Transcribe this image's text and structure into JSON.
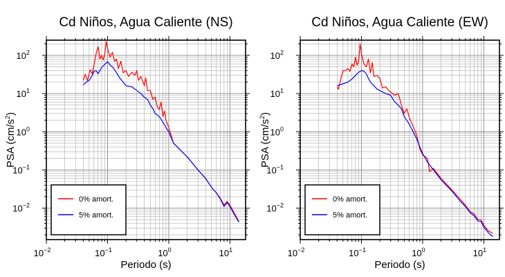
{
  "chart_data": [
    {
      "type": "line",
      "title": "Cd Niños, Agua Caliente (NS)",
      "xlabel": "Periodo (s)",
      "ylabel_main": "PSA (cm/s",
      "ylabel_sup": "2",
      "ylabel_close": ")",
      "x_scale": "log",
      "y_scale": "log",
      "xlim": [
        0.01,
        18
      ],
      "ylim": [
        0.0015,
        250
      ],
      "grid": true,
      "legend_position": "bottom-left",
      "x_ticks": [
        {
          "base": "10",
          "exp": "−2",
          "value": 0.01
        },
        {
          "base": "10",
          "exp": "−1",
          "value": 0.1
        },
        {
          "base": "10",
          "exp": "0",
          "value": 1
        },
        {
          "base": "10",
          "exp": "1",
          "value": 10
        }
      ],
      "y_ticks": [
        {
          "base": "10",
          "exp": "−2",
          "value": 0.01
        },
        {
          "base": "10",
          "exp": "−1",
          "value": 0.1
        },
        {
          "base": "10",
          "exp": "0",
          "value": 1
        },
        {
          "base": "10",
          "exp": "1",
          "value": 10
        },
        {
          "base": "10",
          "exp": "2",
          "value": 100
        }
      ],
      "series": [
        {
          "name": "0% amort.",
          "color": "#ff0000",
          "points": [
            [
              0.04,
              22
            ],
            [
              0.043,
              32
            ],
            [
              0.047,
              22
            ],
            [
              0.052,
              42
            ],
            [
              0.056,
              33
            ],
            [
              0.06,
              55
            ],
            [
              0.065,
              110
            ],
            [
              0.07,
              170
            ],
            [
              0.075,
              80
            ],
            [
              0.08,
              100
            ],
            [
              0.085,
              75
            ],
            [
              0.09,
              110
            ],
            [
              0.095,
              230
            ],
            [
              0.1,
              150
            ],
            [
              0.11,
              90
            ],
            [
              0.12,
              120
            ],
            [
              0.13,
              70
            ],
            [
              0.14,
              80
            ],
            [
              0.15,
              45
            ],
            [
              0.165,
              70
            ],
            [
              0.18,
              35
            ],
            [
              0.2,
              40
            ],
            [
              0.22,
              28
            ],
            [
              0.25,
              36
            ],
            [
              0.28,
              30
            ],
            [
              0.3,
              40
            ],
            [
              0.32,
              22
            ],
            [
              0.35,
              28
            ],
            [
              0.4,
              16
            ],
            [
              0.42,
              26
            ],
            [
              0.45,
              12
            ],
            [
              0.5,
              12
            ],
            [
              0.55,
              7
            ],
            [
              0.6,
              8
            ],
            [
              0.65,
              4.5
            ],
            [
              0.7,
              3.8
            ],
            [
              0.75,
              6
            ],
            [
              0.8,
              2.5
            ],
            [
              0.85,
              3.5
            ],
            [
              0.9,
              2
            ],
            [
              1.0,
              1.3
            ],
            [
              1.2,
              0.5
            ],
            [
              1.5,
              0.35
            ],
            [
              2.0,
              0.22
            ],
            [
              3.0,
              0.1
            ],
            [
              4.0,
              0.06
            ],
            [
              5.0,
              0.035
            ],
            [
              6.0,
              0.025
            ],
            [
              7.0,
              0.018
            ],
            [
              8.0,
              0.012
            ],
            [
              9.0,
              0.015
            ],
            [
              10.0,
              0.012
            ],
            [
              12.0,
              0.007
            ],
            [
              14.0,
              0.0045
            ]
          ]
        },
        {
          "name": "5% amort.",
          "color": "#0000ff",
          "points": [
            [
              0.04,
              17
            ],
            [
              0.045,
              20
            ],
            [
              0.05,
              22
            ],
            [
              0.055,
              28
            ],
            [
              0.06,
              38
            ],
            [
              0.065,
              40
            ],
            [
              0.07,
              33
            ],
            [
              0.075,
              40
            ],
            [
              0.08,
              48
            ],
            [
              0.09,
              58
            ],
            [
              0.1,
              68
            ],
            [
              0.11,
              56
            ],
            [
              0.12,
              50
            ],
            [
              0.13,
              42
            ],
            [
              0.14,
              35
            ],
            [
              0.16,
              25
            ],
            [
              0.18,
              20
            ],
            [
              0.2,
              16
            ],
            [
              0.25,
              15
            ],
            [
              0.3,
              12
            ],
            [
              0.35,
              10
            ],
            [
              0.4,
              8
            ],
            [
              0.45,
              7
            ],
            [
              0.5,
              5
            ],
            [
              0.55,
              4
            ],
            [
              0.6,
              3
            ],
            [
              0.7,
              2.5
            ],
            [
              0.8,
              1.8
            ],
            [
              0.9,
              1.3
            ],
            [
              1.0,
              1.0
            ],
            [
              1.2,
              0.5
            ],
            [
              1.5,
              0.35
            ],
            [
              2.0,
              0.22
            ],
            [
              3.0,
              0.1
            ],
            [
              4.0,
              0.06
            ],
            [
              5.0,
              0.035
            ],
            [
              6.0,
              0.025
            ],
            [
              7.0,
              0.017
            ],
            [
              8.0,
              0.011
            ],
            [
              9.0,
              0.014
            ],
            [
              10.0,
              0.011
            ],
            [
              12.0,
              0.0065
            ],
            [
              14.0,
              0.0043
            ]
          ]
        }
      ]
    },
    {
      "type": "line",
      "title": "Cd Niños, Agua Caliente (EW)",
      "xlabel": "Periodo (s)",
      "ylabel_main": "PSA (cm/s",
      "ylabel_sup": "2",
      "ylabel_close": ")",
      "x_scale": "log",
      "y_scale": "log",
      "xlim": [
        0.01,
        18
      ],
      "ylim": [
        0.0015,
        250
      ],
      "grid": true,
      "legend_position": "bottom-left",
      "x_ticks": [
        {
          "base": "10",
          "exp": "−2",
          "value": 0.01
        },
        {
          "base": "10",
          "exp": "−1",
          "value": 0.1
        },
        {
          "base": "10",
          "exp": "0",
          "value": 1
        },
        {
          "base": "10",
          "exp": "1",
          "value": 10
        }
      ],
      "y_ticks": [
        {
          "base": "10",
          "exp": "−2",
          "value": 0.01
        },
        {
          "base": "10",
          "exp": "−1",
          "value": 0.1
        },
        {
          "base": "10",
          "exp": "0",
          "value": 1
        },
        {
          "base": "10",
          "exp": "1",
          "value": 10
        },
        {
          "base": "10",
          "exp": "2",
          "value": 100
        }
      ],
      "series": [
        {
          "name": "0% amort.",
          "color": "#ff0000",
          "points": [
            [
              0.04,
              15
            ],
            [
              0.042,
              13
            ],
            [
              0.05,
              40
            ],
            [
              0.055,
              40
            ],
            [
              0.06,
              45
            ],
            [
              0.065,
              38
            ],
            [
              0.07,
              60
            ],
            [
              0.075,
              50
            ],
            [
              0.08,
              90
            ],
            [
              0.085,
              55
            ],
            [
              0.09,
              70
            ],
            [
              0.095,
              200
            ],
            [
              0.1,
              110
            ],
            [
              0.11,
              60
            ],
            [
              0.12,
              50
            ],
            [
              0.13,
              80
            ],
            [
              0.14,
              35
            ],
            [
              0.15,
              65
            ],
            [
              0.16,
              28
            ],
            [
              0.18,
              30
            ],
            [
              0.2,
              25
            ],
            [
              0.22,
              14
            ],
            [
              0.25,
              15
            ],
            [
              0.28,
              12
            ],
            [
              0.3,
              11
            ],
            [
              0.35,
              9
            ],
            [
              0.4,
              10
            ],
            [
              0.45,
              5
            ],
            [
              0.5,
              3
            ],
            [
              0.55,
              4
            ],
            [
              0.6,
              2.5
            ],
            [
              0.65,
              1.8
            ],
            [
              0.7,
              1.4
            ],
            [
              0.8,
              0.8
            ],
            [
              0.9,
              0.35
            ],
            [
              1.0,
              0.25
            ],
            [
              1.2,
              0.2
            ],
            [
              1.3,
              0.09
            ],
            [
              1.5,
              0.11
            ],
            [
              2.0,
              0.06
            ],
            [
              3.0,
              0.03
            ],
            [
              4.0,
              0.018
            ],
            [
              5.0,
              0.012
            ],
            [
              6.0,
              0.008
            ],
            [
              7.0,
              0.007
            ],
            [
              8.0,
              0.005
            ],
            [
              9.0,
              0.005
            ],
            [
              10.0,
              0.0035
            ],
            [
              12.0,
              0.0025
            ],
            [
              14.0,
              0.0022
            ]
          ]
        },
        {
          "name": "5% amort.",
          "color": "#0000ff",
          "points": [
            [
              0.04,
              16
            ],
            [
              0.045,
              17
            ],
            [
              0.05,
              18
            ],
            [
              0.055,
              19
            ],
            [
              0.06,
              20
            ],
            [
              0.07,
              24
            ],
            [
              0.08,
              30
            ],
            [
              0.09,
              36
            ],
            [
              0.1,
              40
            ],
            [
              0.11,
              38
            ],
            [
              0.12,
              33
            ],
            [
              0.13,
              25
            ],
            [
              0.14,
              20
            ],
            [
              0.16,
              16
            ],
            [
              0.18,
              13
            ],
            [
              0.2,
              12
            ],
            [
              0.25,
              10
            ],
            [
              0.3,
              9
            ],
            [
              0.35,
              6
            ],
            [
              0.4,
              5
            ],
            [
              0.45,
              4
            ],
            [
              0.5,
              2.5
            ],
            [
              0.55,
              2
            ],
            [
              0.6,
              1.6
            ],
            [
              0.7,
              1.0
            ],
            [
              0.8,
              0.65
            ],
            [
              0.9,
              0.4
            ],
            [
              1.0,
              0.27
            ],
            [
              1.2,
              0.16
            ],
            [
              1.5,
              0.1
            ],
            [
              2.0,
              0.055
            ],
            [
              3.0,
              0.028
            ],
            [
              4.0,
              0.016
            ],
            [
              5.0,
              0.011
            ],
            [
              6.0,
              0.0075
            ],
            [
              7.0,
              0.0062
            ],
            [
              8.0,
              0.0046
            ],
            [
              9.0,
              0.0045
            ],
            [
              10.0,
              0.0032
            ],
            [
              12.0,
              0.0022
            ],
            [
              14.0,
              0.0018
            ]
          ]
        }
      ]
    }
  ]
}
